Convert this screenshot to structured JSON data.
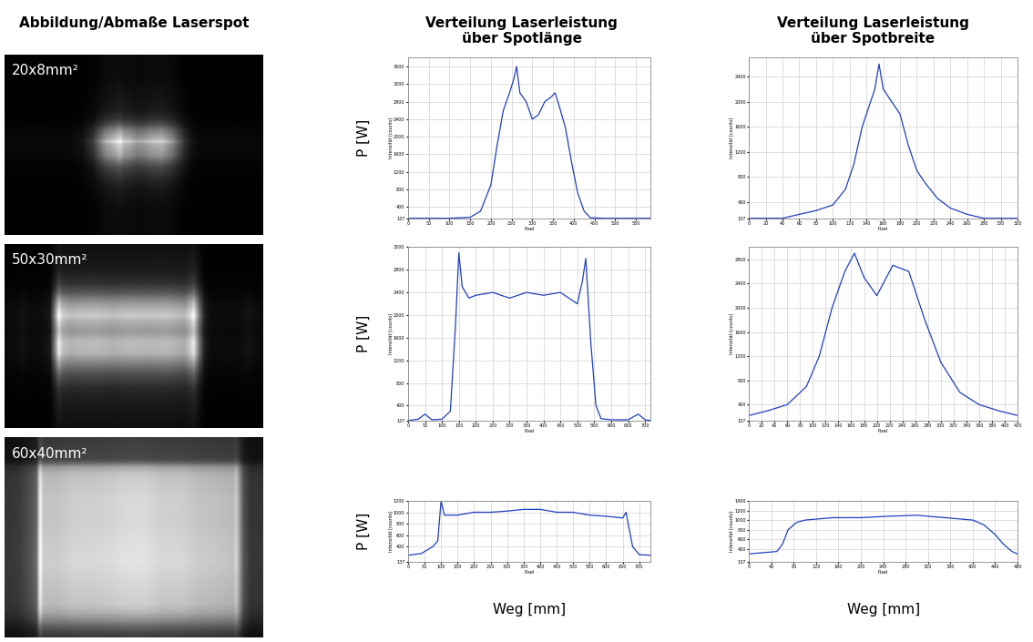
{
  "headers": [
    "Abbildung/Abmaße Laserspot",
    "Verteilung Laserleistung\nüber Spotlänge",
    "Verteilung Laserleistung\nüber Spotbreite"
  ],
  "spots": [
    "20x8mm²",
    "50x30mm²",
    "60x40mm²"
  ],
  "y_label": "P [W]",
  "x_label": "Weg [mm]",
  "chart_data": [
    {
      "type": "line",
      "xlabel": "Pixel",
      "ylabel": "Intensität [counts]",
      "color": "#1f3fbf",
      "grid": true,
      "x": [
        0,
        100,
        150,
        175,
        200,
        215,
        230,
        245,
        255,
        262,
        270,
        285,
        300,
        315,
        330,
        345,
        355,
        365,
        380,
        395,
        410,
        425,
        440,
        475,
        586
      ],
      "values": [
        137,
        137,
        160,
        300,
        900,
        1800,
        2600,
        3000,
        3300,
        3600,
        3000,
        2800,
        2400,
        2500,
        2800,
        2900,
        3000,
        2700,
        2200,
        1400,
        700,
        300,
        150,
        137,
        137
      ],
      "xlim": [
        0,
        586
      ],
      "xticks": [
        0,
        50,
        100,
        150,
        200,
        250,
        300,
        350,
        400,
        450,
        500,
        550
      ],
      "ylim": [
        137,
        3800
      ],
      "yticks": [
        137,
        400,
        800,
        1200,
        1600,
        2000,
        2400,
        2800,
        3200,
        3600
      ]
    },
    {
      "type": "line",
      "xlabel": "Pixel",
      "ylabel": "Intensität [counts]",
      "color": "#1f3fbf",
      "grid": true,
      "x": [
        0,
        40,
        60,
        80,
        100,
        115,
        125,
        135,
        145,
        150,
        155,
        160,
        165,
        170,
        180,
        190,
        200,
        210,
        225,
        240,
        260,
        280,
        320
      ],
      "values": [
        137,
        137,
        200,
        260,
        350,
        600,
        1000,
        1600,
        2000,
        2200,
        2600,
        2200,
        2100,
        2000,
        1800,
        1300,
        900,
        700,
        450,
        300,
        200,
        137,
        137
      ],
      "xlim": [
        0,
        320
      ],
      "xticks": [
        0,
        20,
        40,
        60,
        80,
        100,
        120,
        140,
        160,
        180,
        200,
        220,
        240,
        260,
        280,
        300,
        320
      ],
      "ylim": [
        137,
        2700
      ],
      "yticks": [
        137,
        400,
        800,
        1200,
        1600,
        2000,
        2400
      ]
    },
    {
      "type": "line",
      "xlabel": "Pixel",
      "ylabel": "Intensität [counts]",
      "color": "#1f3fbf",
      "grid": true,
      "x": [
        0,
        30,
        50,
        70,
        100,
        125,
        140,
        150,
        160,
        180,
        200,
        250,
        300,
        350,
        400,
        450,
        500,
        515,
        525,
        540,
        555,
        570,
        600,
        650,
        680,
        700,
        717
      ],
      "values": [
        137,
        160,
        250,
        150,
        160,
        300,
        1800,
        3100,
        2500,
        2300,
        2350,
        2400,
        2300,
        2400,
        2350,
        2400,
        2200,
        2600,
        3000,
        1500,
        400,
        170,
        150,
        150,
        250,
        150,
        137
      ],
      "xlim": [
        0,
        717
      ],
      "xticks": [
        0,
        50,
        100,
        150,
        200,
        250,
        300,
        350,
        400,
        450,
        500,
        550,
        600,
        650,
        700
      ],
      "ylim": [
        137,
        3200
      ],
      "yticks": [
        137,
        400,
        800,
        1200,
        1600,
        2000,
        2400,
        2800,
        3200
      ]
    },
    {
      "type": "line",
      "xlabel": "Pixel",
      "ylabel": "Intensität [counts]",
      "color": "#1f3fbf",
      "grid": true,
      "x": [
        0,
        30,
        60,
        90,
        110,
        130,
        150,
        165,
        180,
        200,
        225,
        250,
        275,
        300,
        330,
        360,
        390,
        420
      ],
      "values": [
        220,
        300,
        400,
        700,
        1200,
        2000,
        2600,
        2900,
        2500,
        2200,
        2700,
        2600,
        1800,
        1100,
        600,
        400,
        300,
        220
      ],
      "xlim": [
        0,
        420
      ],
      "xticks": [
        0,
        20,
        40,
        60,
        80,
        100,
        120,
        140,
        160,
        180,
        200,
        220,
        240,
        260,
        280,
        300,
        320,
        340,
        360,
        380,
        400,
        420
      ],
      "ylim": [
        137,
        3000
      ],
      "yticks": [
        137,
        400,
        800,
        1200,
        1600,
        2000,
        2400,
        2800
      ]
    },
    {
      "type": "line",
      "xlabel": "Pixel",
      "ylabel": "Intensität [counts]",
      "color": "#1f3fbf",
      "grid": true,
      "x": [
        0,
        40,
        75,
        90,
        100,
        110,
        150,
        200,
        250,
        300,
        350,
        400,
        450,
        500,
        550,
        600,
        650,
        660,
        680,
        700,
        735
      ],
      "values": [
        250,
        280,
        400,
        500,
        1200,
        950,
        950,
        1000,
        1000,
        1020,
        1050,
        1050,
        1000,
        1000,
        950,
        930,
        900,
        1000,
        400,
        260,
        250
      ],
      "xlim": [
        0,
        735
      ],
      "xticks": [
        0,
        50,
        100,
        150,
        200,
        250,
        300,
        350,
        400,
        450,
        500,
        550,
        600,
        650,
        700
      ],
      "ylim": [
        137,
        1200
      ],
      "yticks": [
        137,
        400,
        600,
        800,
        1000,
        1200
      ]
    },
    {
      "type": "line",
      "xlabel": "Pixel",
      "ylabel": "Intensität [counts]",
      "color": "#1f3fbf",
      "grid": true,
      "x": [
        0,
        30,
        50,
        60,
        70,
        85,
        100,
        150,
        200,
        250,
        300,
        350,
        400,
        420,
        440,
        455,
        470,
        480
      ],
      "values": [
        300,
        330,
        350,
        500,
        800,
        950,
        1000,
        1050,
        1050,
        1080,
        1100,
        1050,
        1000,
        900,
        700,
        500,
        350,
        300
      ],
      "xlim": [
        0,
        480
      ],
      "xticks": [
        0,
        40,
        80,
        120,
        160,
        200,
        240,
        280,
        320,
        360,
        400,
        440,
        480
      ],
      "ylim": [
        137,
        1400
      ],
      "yticks": [
        137,
        400,
        600,
        800,
        1000,
        1200,
        1400
      ]
    }
  ]
}
